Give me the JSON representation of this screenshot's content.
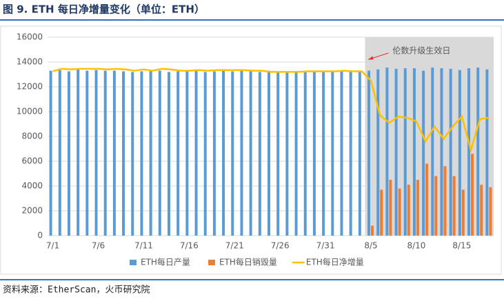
{
  "title": "图 9. ETH 每日净增量变化（单位：ETH）",
  "source": "资料来源：EtherScan，火币研究院",
  "chart_data": {
    "type": "bar-line",
    "categories": [
      "7/1",
      null,
      null,
      null,
      null,
      "7/6",
      null,
      null,
      null,
      null,
      "7/11",
      null,
      null,
      null,
      null,
      "7/16",
      null,
      null,
      null,
      null,
      "7/21",
      null,
      null,
      null,
      null,
      "7/26",
      null,
      null,
      null,
      null,
      "7/31",
      null,
      null,
      null,
      null,
      "8/5",
      null,
      null,
      null,
      null,
      "8/10",
      null,
      null,
      null,
      null,
      "8/15",
      null,
      null,
      null
    ],
    "series": [
      {
        "name": "ETH每日产量",
        "type": "bar",
        "color": "#5b9bd5",
        "values": [
          13300,
          13350,
          13250,
          13400,
          13300,
          13350,
          13300,
          13300,
          13250,
          13200,
          13250,
          13300,
          13300,
          13200,
          13250,
          13350,
          13300,
          13200,
          13250,
          13300,
          13250,
          13300,
          13250,
          13200,
          13300,
          13250,
          13150,
          13200,
          13200,
          13250,
          13200,
          13250,
          13250,
          13200,
          13200,
          13300,
          13400,
          13550,
          13450,
          13500,
          13500,
          13300,
          13550,
          13500,
          13450,
          13350,
          13500,
          13550,
          13400
        ]
      },
      {
        "name": "ETH每日销毁量",
        "type": "bar",
        "color": "#ed7d31",
        "values": [
          null,
          null,
          null,
          null,
          null,
          null,
          null,
          null,
          null,
          null,
          null,
          null,
          null,
          null,
          null,
          null,
          null,
          null,
          null,
          null,
          null,
          null,
          null,
          null,
          null,
          null,
          null,
          null,
          null,
          null,
          null,
          null,
          null,
          null,
          null,
          800,
          3700,
          4500,
          3800,
          4100,
          4500,
          5800,
          4800,
          5600,
          4800,
          3700,
          6600,
          4100,
          3900
        ]
      },
      {
        "name": "ETH每日净增量",
        "type": "line",
        "color": "#ffc000",
        "values": [
          13250,
          13450,
          13400,
          13450,
          13450,
          13450,
          13400,
          13450,
          13400,
          13300,
          13400,
          13300,
          13450,
          13400,
          13300,
          13300,
          13350,
          13300,
          13350,
          13350,
          13350,
          13350,
          13300,
          13300,
          13200,
          13200,
          13200,
          13200,
          13250,
          13250,
          13250,
          13250,
          13300,
          13250,
          13250,
          12500,
          9700,
          9100,
          9600,
          9500,
          9200,
          7600,
          8800,
          7800,
          8800,
          9600,
          6900,
          9400,
          9500
        ]
      }
    ],
    "ylim": [
      0,
      16000
    ],
    "yticks": [
      0,
      2000,
      4000,
      6000,
      8000,
      10000,
      12000,
      14000,
      16000
    ],
    "grid": true,
    "annotation": {
      "text": "伦数升级生效日",
      "x": "8/5"
    },
    "highlight_color": "#d9d9d9",
    "legend": "bottom"
  }
}
